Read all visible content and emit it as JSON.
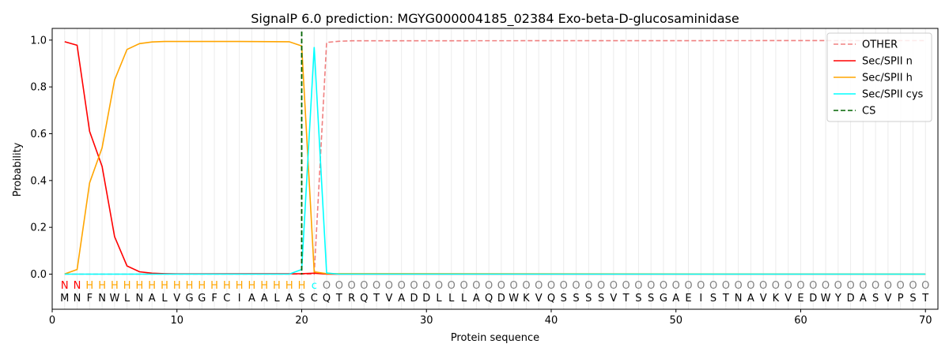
{
  "chart_data": {
    "type": "line",
    "title": "SignalP 6.0 prediction: MGYG000004185_02384 Exo-beta-D-glucosaminidase",
    "xlabel": "Protein sequence",
    "ylabel": "Probability",
    "xlim": [
      0,
      71
    ],
    "ylim": [
      -0.15,
      1.05
    ],
    "xticks": [
      0,
      10,
      20,
      30,
      40,
      50,
      60,
      70
    ],
    "yticks": [
      0.0,
      0.2,
      0.4,
      0.6,
      0.8,
      1.0
    ],
    "ytick_labels": [
      "0.0",
      "0.2",
      "0.4",
      "0.6",
      "0.8",
      "1.0"
    ],
    "grid": "vertical lines at every residue",
    "legend_position": "top-right",
    "sequence": [
      "M",
      "N",
      "F",
      "N",
      "W",
      "L",
      "N",
      "A",
      "L",
      "V",
      "G",
      "G",
      "F",
      "C",
      "I",
      "A",
      "A",
      "L",
      "A",
      "S",
      "C",
      "Q",
      "T",
      "R",
      "Q",
      "T",
      "V",
      "A",
      "D",
      "D",
      "L",
      "L",
      "L",
      "A",
      "Q",
      "D",
      "W",
      "K",
      "V",
      "Q",
      "S",
      "S",
      "S",
      "S",
      "V",
      "T",
      "S",
      "S",
      "G",
      "A",
      "E",
      "I",
      "S",
      "T",
      "N",
      "A",
      "V",
      "K",
      "V",
      "E",
      "D",
      "W",
      "Y",
      "D",
      "A",
      "S",
      "V",
      "P",
      "S",
      "T"
    ],
    "annotation": [
      "N",
      "N",
      "H",
      "H",
      "H",
      "H",
      "H",
      "H",
      "H",
      "H",
      "H",
      "H",
      "H",
      "H",
      "H",
      "H",
      "H",
      "H",
      "H",
      "H",
      "c",
      "O",
      "O",
      "O",
      "O",
      "O",
      "O",
      "O",
      "O",
      "O",
      "O",
      "O",
      "O",
      "O",
      "O",
      "O",
      "O",
      "O",
      "O",
      "O",
      "O",
      "O",
      "O",
      "O",
      "O",
      "O",
      "O",
      "O",
      "O",
      "O",
      "O",
      "O",
      "O",
      "O",
      "O",
      "O",
      "O",
      "O",
      "O",
      "O",
      "O",
      "O",
      "O",
      "O",
      "O",
      "O",
      "O",
      "O",
      "O",
      "O"
    ],
    "annotation_colors": {
      "N": "#ff0000",
      "H": "#ffa500",
      "c": "#00ffff",
      "O": "#808080"
    },
    "cleavage_site": 20,
    "series": [
      {
        "name": "OTHER",
        "color": "#f08080",
        "dash": "dashed",
        "x": [
          1,
          20,
          21,
          22,
          23,
          24,
          70
        ],
        "y": [
          0.0,
          0.0,
          0.0,
          0.99,
          0.995,
          0.997,
          0.998
        ]
      },
      {
        "name": "Sec/SPII n",
        "color": "#ff0000",
        "dash": "solid",
        "x": [
          1,
          2,
          3,
          4,
          5,
          6,
          7,
          8,
          9,
          10,
          20,
          21,
          22,
          70
        ],
        "y": [
          0.993,
          0.978,
          0.61,
          0.46,
          0.16,
          0.035,
          0.01,
          0.004,
          0.002,
          0.001,
          0.002,
          0.004,
          0.0,
          0.0
        ]
      },
      {
        "name": "Sec/SPII h",
        "color": "#ffa500",
        "dash": "solid",
        "x": [
          1,
          2,
          3,
          4,
          5,
          6,
          7,
          8,
          9,
          10,
          15,
          19,
          20,
          21,
          22,
          70
        ],
        "y": [
          0.001,
          0.02,
          0.39,
          0.54,
          0.83,
          0.96,
          0.985,
          0.992,
          0.994,
          0.994,
          0.994,
          0.993,
          0.975,
          0.01,
          0.002,
          0.0
        ]
      },
      {
        "name": "Sec/SPII cys",
        "color": "#00ffff",
        "dash": "solid",
        "x": [
          1,
          19,
          20,
          21,
          22,
          23,
          70
        ],
        "y": [
          0.0,
          0.0,
          0.02,
          0.97,
          0.005,
          0.0,
          0.0
        ]
      },
      {
        "name": "CS",
        "color": "#006400",
        "dash": "dashed",
        "x": [],
        "y": []
      }
    ]
  }
}
